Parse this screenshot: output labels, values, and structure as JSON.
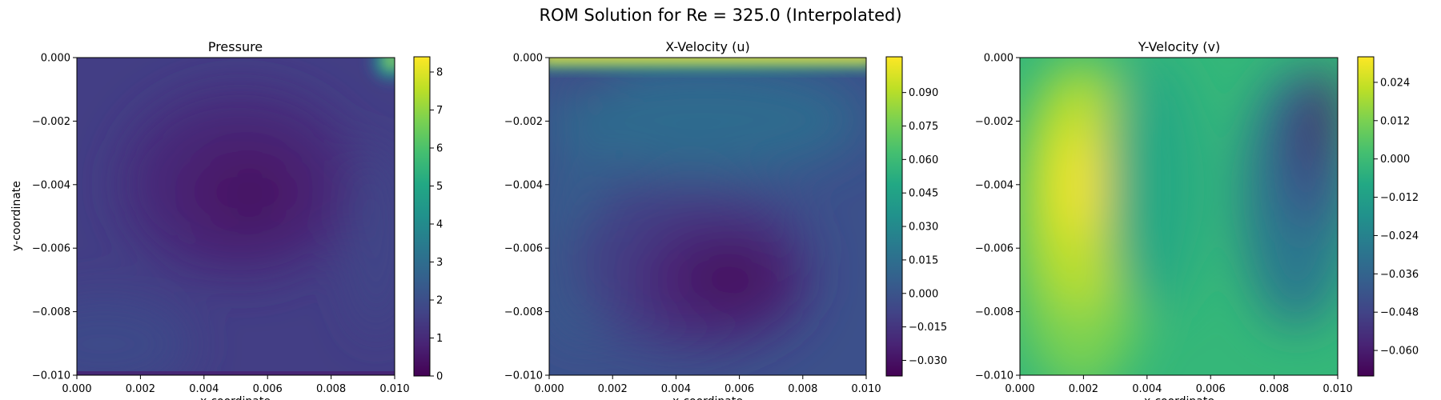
{
  "figure": {
    "title": "ROM Solution for Re = 325.0 (Interpolated)"
  },
  "colormap": [
    "#440154",
    "#482475",
    "#414487",
    "#355f8d",
    "#2a788e",
    "#21918c",
    "#22a884",
    "#44bf70",
    "#7ad151",
    "#bddf26",
    "#fde725"
  ],
  "chart_data": [
    {
      "type": "heatmap",
      "title": "Pressure",
      "xlabel": "x-coordinate",
      "ylabel": "y-coordinate",
      "xlim": [
        0,
        0.01
      ],
      "ylim": [
        -0.01,
        0
      ],
      "xticks": [
        "0.000",
        "0.002",
        "0.004",
        "0.006",
        "0.008",
        "0.010"
      ],
      "yticks": [
        "0.000",
        "−0.002",
        "−0.004",
        "−0.006",
        "−0.008",
        "−0.010"
      ],
      "colorbar": {
        "range": [
          0,
          8.4
        ],
        "ticks": [
          "0",
          "1",
          "2",
          "3",
          "4",
          "5",
          "6",
          "7",
          "8"
        ]
      },
      "field_features": [
        {
          "x": 0.0058,
          "y": -0.0042,
          "value": 0.4,
          "desc": "minimum"
        },
        {
          "x": 0.0099,
          "y": -0.0002,
          "value": 8.3,
          "desc": "corner maximum"
        }
      ]
    },
    {
      "type": "heatmap",
      "title": "X-Velocity (u)",
      "xlabel": "x-coordinate",
      "ylabel": "",
      "xlim": [
        0,
        0.01
      ],
      "ylim": [
        -0.01,
        0
      ],
      "xticks": [
        "0.000",
        "0.002",
        "0.004",
        "0.006",
        "0.008",
        "0.010"
      ],
      "yticks": [
        "0.000",
        "−0.002",
        "−0.004",
        "−0.006",
        "−0.008",
        "−0.010"
      ],
      "colorbar": {
        "range": [
          -0.037,
          0.106
        ],
        "ticks": [
          "−0.030",
          "−0.015",
          "0.000",
          "0.015",
          "0.030",
          "0.045",
          "0.060",
          "0.075",
          "0.090"
        ]
      },
      "field_features": [
        {
          "x": 0.0057,
          "y": -0.007,
          "value": -0.034,
          "desc": "minimum"
        },
        {
          "x": 0.005,
          "y": 0.0,
          "value": 0.1,
          "desc": "lid maximum"
        }
      ]
    },
    {
      "type": "heatmap",
      "title": "Y-Velocity (v)",
      "xlabel": "x-coordinate",
      "ylabel": "",
      "xlim": [
        0,
        0.01
      ],
      "ylim": [
        -0.01,
        0
      ],
      "xticks": [
        "0.000",
        "0.002",
        "0.004",
        "0.006",
        "0.008",
        "0.010"
      ],
      "yticks": [
        "0.000",
        "−0.002",
        "−0.004",
        "−0.006",
        "−0.008",
        "−0.010"
      ],
      "colorbar": {
        "range": [
          -0.068,
          0.032
        ],
        "ticks": [
          "−0.060",
          "−0.048",
          "−0.036",
          "−0.024",
          "−0.012",
          "0.000",
          "0.012",
          "0.024"
        ]
      },
      "field_features": [
        {
          "x": 0.002,
          "y": -0.004,
          "value": 0.028,
          "desc": "maximum"
        },
        {
          "x": 0.0093,
          "y": -0.002,
          "value": -0.063,
          "desc": "minimum"
        }
      ]
    }
  ]
}
